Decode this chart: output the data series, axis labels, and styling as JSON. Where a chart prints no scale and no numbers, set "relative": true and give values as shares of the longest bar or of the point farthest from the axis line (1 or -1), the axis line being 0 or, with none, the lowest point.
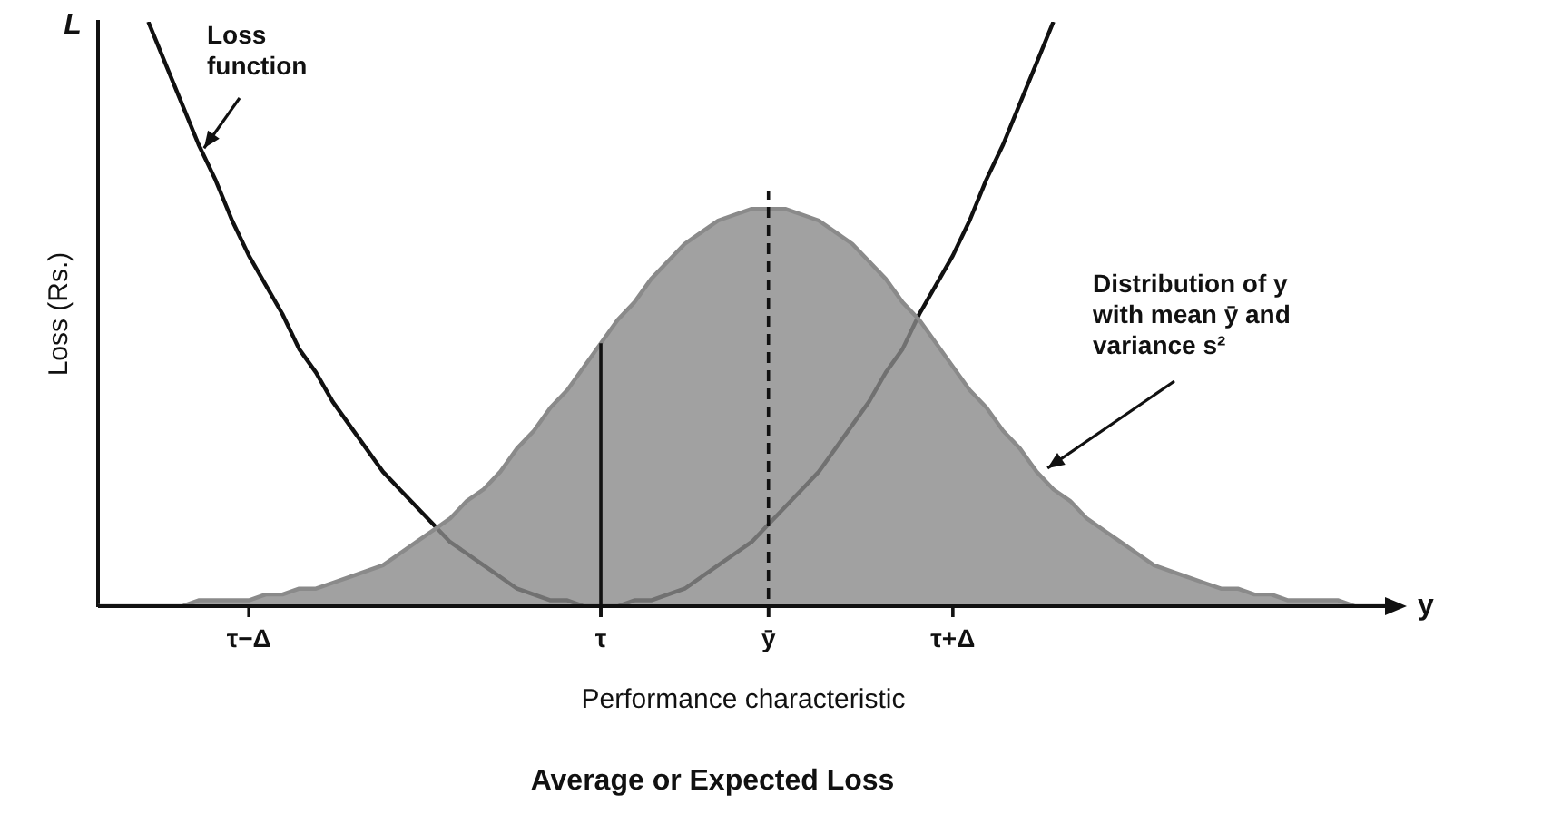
{
  "chart_data": {
    "type": "line",
    "relative": true,
    "title": "Average or Expected Loss",
    "xlabel": "Performance characteristic",
    "ylabel": "Loss (Rs.)",
    "categories": [
      null,
      null,
      null,
      null,
      null,
      null,
      null,
      null,
      null,
      "τ−Δ",
      null,
      null,
      null,
      null,
      null,
      null,
      null,
      null,
      null,
      null,
      null,
      null,
      null,
      null,
      null,
      null,
      null,
      null,
      null,
      null,
      "τ",
      null,
      null,
      null,
      null,
      null,
      null,
      null,
      null,
      null,
      "ȳ",
      null,
      null,
      null,
      null,
      null,
      null,
      null,
      null,
      null,
      null,
      "τ+Δ",
      null,
      null,
      null,
      null,
      null,
      null,
      null,
      null,
      null,
      null,
      null,
      null,
      null,
      null,
      null,
      null,
      null,
      null,
      null,
      null,
      null,
      null,
      null,
      null,
      null,
      null
    ],
    "series": [
      {
        "type": "area",
        "color": "#8a8a8a",
        "values": [
          0,
          0,
          0,
          0,
          0,
          0,
          0.01,
          0.01,
          0.01,
          0.01,
          0.02,
          0.02,
          0.03,
          0.03,
          0.04,
          0.05,
          0.06,
          0.07,
          0.09,
          0.11,
          0.13,
          0.15,
          0.18,
          0.2,
          0.23,
          0.27,
          0.3,
          0.34,
          0.37,
          0.41,
          0.45,
          0.49,
          0.52,
          0.56,
          0.59,
          0.62,
          0.64,
          0.66,
          0.67,
          0.68,
          0.68,
          0.68,
          0.67,
          0.66,
          0.64,
          0.62,
          0.59,
          0.56,
          0.52,
          0.49,
          0.45,
          0.41,
          0.37,
          0.34,
          0.3,
          0.27,
          0.23,
          0.2,
          0.18,
          0.15,
          0.13,
          0.11,
          0.09,
          0.07,
          0.06,
          0.05,
          0.04,
          0.03,
          0.03,
          0.02,
          0.02,
          0.01,
          0.01,
          0.01,
          0.01,
          0,
          0,
          0
        ]
      },
      {
        "color": "#111111",
        "values": [
          null,
          null,
          null,
          1,
          0.93,
          0.86,
          0.79,
          0.73,
          0.66,
          0.6,
          0.55,
          0.5,
          0.44,
          0.4,
          0.35,
          0.31,
          0.27,
          0.23,
          0.2,
          0.17,
          0.14,
          0.11,
          0.09,
          0.07,
          0.05,
          0.03,
          0.02,
          0.01,
          0.01,
          0,
          0,
          0,
          0.01,
          0.01,
          0.02,
          0.03,
          0.05,
          0.07,
          0.09,
          0.11,
          0.14,
          0.17,
          0.2,
          0.23,
          0.27,
          0.31,
          0.35,
          0.4,
          0.44,
          0.5,
          0.55,
          0.6,
          0.66,
          0.73,
          0.79,
          0.86,
          0.93,
          1,
          null,
          null,
          null,
          null,
          null,
          null,
          null,
          null,
          null,
          null,
          null,
          null,
          null,
          null,
          null,
          null,
          null,
          null,
          null,
          null
        ]
      }
    ],
    "ref_lines": [
      {
        "axis": "x",
        "value": "τ"
      },
      {
        "axis": "x",
        "value": "ȳ",
        "line_style": "dashed"
      }
    ],
    "annotations": [
      "L",
      "y",
      "Loss function",
      "Distribution of y with mean ȳ and variance s²"
    ],
    "grid": false,
    "legend": false,
    "marker": "none"
  }
}
